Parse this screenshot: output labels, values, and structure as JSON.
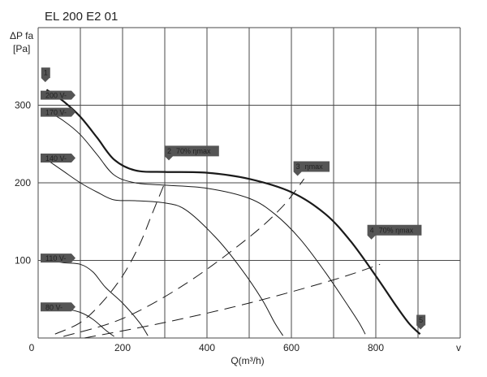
{
  "chart_data": {
    "type": "line",
    "title": "EL 200 E2 01",
    "ylabel_line1": "ΔP fa",
    "ylabel_line2": "[Pa]",
    "xlabel": "Q(m³/h)",
    "x_corner_label": "v",
    "xlim": [
      0,
      1000
    ],
    "ylim": [
      0,
      400
    ],
    "grid": true,
    "x_ticks": [
      {
        "value": 0,
        "label": "0"
      },
      {
        "value": 200,
        "label": "200"
      },
      {
        "value": 400,
        "label": "400"
      },
      {
        "value": 600,
        "label": "600"
      },
      {
        "value": 800,
        "label": "800"
      }
    ],
    "y_ticks": [
      {
        "value": 100,
        "label": "100"
      },
      {
        "value": 200,
        "label": "200"
      },
      {
        "value": 300,
        "label": "300"
      }
    ],
    "series": [
      {
        "name": "200 V",
        "style": "bold",
        "points": [
          [
            20,
            320
          ],
          [
            60,
            305
          ],
          [
            100,
            285
          ],
          [
            140,
            258
          ],
          [
            180,
            230
          ],
          [
            230,
            216
          ],
          [
            300,
            214
          ],
          [
            400,
            213
          ],
          [
            500,
            205
          ],
          [
            600,
            188
          ],
          [
            680,
            160
          ],
          [
            740,
            125
          ],
          [
            800,
            80
          ],
          [
            850,
            40
          ],
          [
            880,
            18
          ],
          [
            905,
            5
          ]
        ]
      },
      {
        "name": "170 V",
        "style": "thin",
        "points": [
          [
            20,
            293
          ],
          [
            60,
            280
          ],
          [
            100,
            262
          ],
          [
            140,
            236
          ],
          [
            180,
            210
          ],
          [
            230,
            200
          ],
          [
            300,
            197
          ],
          [
            400,
            193
          ],
          [
            500,
            180
          ],
          [
            560,
            160
          ],
          [
            620,
            128
          ],
          [
            680,
            85
          ],
          [
            730,
            45
          ],
          [
            760,
            20
          ],
          [
            775,
            5
          ]
        ]
      },
      {
        "name": "140 V",
        "style": "thin",
        "points": [
          [
            20,
            230
          ],
          [
            60,
            215
          ],
          [
            100,
            200
          ],
          [
            140,
            188
          ],
          [
            180,
            178
          ],
          [
            230,
            177
          ],
          [
            300,
            174
          ],
          [
            350,
            165
          ],
          [
            420,
            130
          ],
          [
            480,
            90
          ],
          [
            530,
            50
          ],
          [
            560,
            20
          ],
          [
            580,
            3
          ]
        ]
      },
      {
        "name": "110 V",
        "style": "thin",
        "points": [
          [
            20,
            101
          ],
          [
            60,
            97
          ],
          [
            100,
            95
          ],
          [
            130,
            85
          ],
          [
            160,
            65
          ],
          [
            200,
            45
          ],
          [
            240,
            20
          ],
          [
            260,
            3
          ]
        ]
      },
      {
        "name": "80 V",
        "style": "thin",
        "points": [
          [
            20,
            40
          ],
          [
            60,
            38
          ],
          [
            100,
            33
          ],
          [
            130,
            24
          ],
          [
            160,
            10
          ],
          [
            180,
            2
          ]
        ]
      },
      {
        "name": "operating line 1",
        "style": "dash",
        "points": [
          [
            40,
            5
          ],
          [
            100,
            20
          ],
          [
            150,
            45
          ],
          [
            200,
            80
          ],
          [
            240,
            120
          ],
          [
            270,
            160
          ],
          [
            300,
            200
          ]
        ]
      },
      {
        "name": "operating line 2",
        "style": "dash",
        "points": [
          [
            60,
            2
          ],
          [
            200,
            25
          ],
          [
            350,
            70
          ],
          [
            500,
            130
          ],
          [
            580,
            170
          ],
          [
            630,
            205
          ]
        ]
      },
      {
        "name": "operating line 3",
        "style": "dash",
        "points": [
          [
            110,
            0
          ],
          [
            300,
            20
          ],
          [
            500,
            45
          ],
          [
            700,
            75
          ],
          [
            810,
            95
          ]
        ]
      }
    ],
    "voltage_labels": [
      {
        "label": "200 V-",
        "at": 313
      },
      {
        "label": "170 V-",
        "at": 291
      },
      {
        "label": "140 V-",
        "at": 232
      },
      {
        "label": "110 V-",
        "at": 103
      },
      {
        "label": "80 V-",
        "at": 40
      }
    ],
    "point_flags": [
      {
        "id": "1",
        "text": "",
        "x": 15,
        "y": 335
      },
      {
        "id": "2",
        "text": "70% ηmax",
        "x": 300,
        "y": 230
      },
      {
        "id": "3",
        "text": "ηmax",
        "x": 605,
        "y": 210
      },
      {
        "id": "4",
        "text": "70% ηmax",
        "x": 780,
        "y": 128
      },
      {
        "id": "5",
        "text": "",
        "x": 908,
        "y": 12
      }
    ],
    "colors": {
      "curve": "#1a1a1a",
      "grid": "#4a4a4a",
      "tag_fill": "#555555",
      "tag_text": "#ffffff"
    }
  }
}
